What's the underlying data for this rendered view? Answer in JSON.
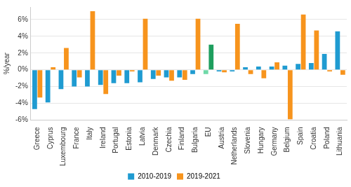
{
  "chart_data": {
    "type": "bar",
    "y_label": "%/year",
    "categories": [
      "Greece",
      "Cyprus",
      "Luxembourg",
      "France",
      "Italy",
      "Ireland",
      "Portugal",
      "Estonia",
      "Latvia",
      "Denmark",
      "Czechia",
      "Finland",
      "Bulgaria",
      "EU",
      "Austria",
      "Netherlands",
      "Slovenia",
      "Hungary",
      "Germany",
      "Belgium",
      "Spain",
      "Croatia",
      "Poland",
      "Lithuania"
    ],
    "series": [
      {
        "name": "2010-2019",
        "color": "#1f9bd1",
        "colors": [
          "#1f9bd1",
          "#1f9bd1",
          "#1f9bd1",
          "#1f9bd1",
          "#1f9bd1",
          "#1f9bd1",
          "#1f9bd1",
          "#1f9bd1",
          "#1f9bd1",
          "#1f9bd1",
          "#1f9bd1",
          "#1f9bd1",
          "#1f9bd1",
          "#6fd9a8",
          "#1f9bd1",
          "#1f9bd1",
          "#1f9bd1",
          "#1f9bd1",
          "#1f9bd1",
          "#1f9bd1",
          "#1f9bd1",
          "#1f9bd1",
          "#1f9bd1",
          "#1f9bd1"
        ],
        "values": [
          -4.7,
          -3.9,
          -2.3,
          -2.0,
          -2.0,
          -1.8,
          -1.6,
          -1.6,
          -1.5,
          -1.1,
          -0.9,
          -0.9,
          -0.5,
          -0.5,
          -0.2,
          -0.2,
          0.3,
          0.4,
          0.4,
          0.5,
          0.7,
          0.8,
          1.9,
          4.6
        ]
      },
      {
        "name": "2019-2021",
        "color": "#f7941d",
        "colors": [
          "#f7941d",
          "#f7941d",
          "#f7941d",
          "#f7941d",
          "#f7941d",
          "#f7941d",
          "#f7941d",
          "#f7941d",
          "#f7941d",
          "#f7941d",
          "#f7941d",
          "#f7941d",
          "#f7941d",
          "#1e9e5e",
          "#f7941d",
          "#f7941d",
          "#f7941d",
          "#f7941d",
          "#f7941d",
          "#f7941d",
          "#f7941d",
          "#f7941d",
          "#f7941d",
          "#f7941d"
        ],
        "values": [
          -3.3,
          0.3,
          2.6,
          -0.9,
          7.0,
          -2.9,
          -0.7,
          -0.2,
          6.1,
          -0.7,
          -1.3,
          -1.2,
          6.1,
          3.0,
          -0.3,
          5.5,
          -0.5,
          -1.0,
          0.9,
          -5.9,
          6.6,
          4.7,
          -0.2,
          -0.6
        ]
      }
    ],
    "ylim": [
      -6,
      7.5
    ],
    "yticks": [
      {
        "value": -6,
        "label": "-6%"
      },
      {
        "value": -4,
        "label": "-4%"
      },
      {
        "value": -2,
        "label": "-2%"
      },
      {
        "value": 0,
        "label": "0%"
      },
      {
        "value": 2,
        "label": "2%"
      },
      {
        "value": 4,
        "label": "4%"
      },
      {
        "value": 6,
        "label": "6%"
      }
    ],
    "grid": true,
    "legend": "bottom"
  }
}
